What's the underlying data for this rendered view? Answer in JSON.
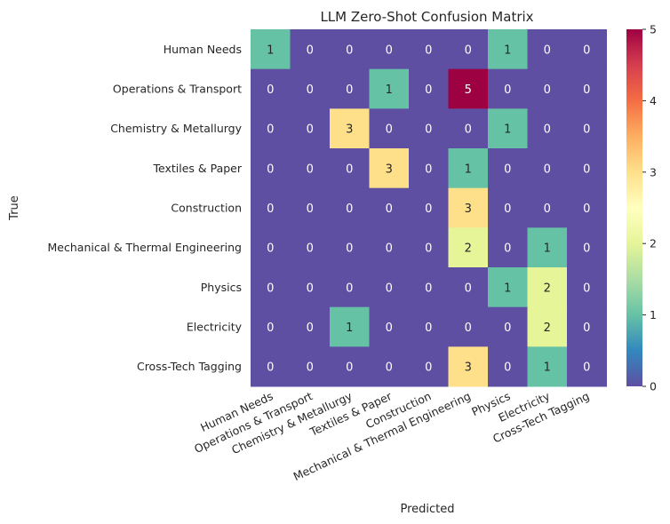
{
  "chart_data": {
    "type": "heatmap",
    "title": "LLM Zero-Shot Confusion Matrix",
    "xlabel": "Predicted",
    "ylabel": "True",
    "row_labels": [
      "Human Needs",
      "Operations & Transport",
      "Chemistry & Metallurgy",
      "Textiles & Paper",
      "Construction",
      "Mechanical & Thermal Engineering",
      "Physics",
      "Electricity",
      "Cross-Tech Tagging"
    ],
    "col_labels": [
      "Human Needs",
      "Operations & Transport",
      "Chemistry & Metallurgy",
      "Textiles & Paper",
      "Construction",
      "Mechanical & Thermal Engineering",
      "Physics",
      "Electricity",
      "Cross-Tech Tagging"
    ],
    "values": [
      [
        1,
        0,
        0,
        0,
        0,
        0,
        1,
        0,
        0
      ],
      [
        0,
        0,
        0,
        1,
        0,
        5,
        0,
        0,
        0
      ],
      [
        0,
        0,
        3,
        0,
        0,
        0,
        1,
        0,
        0
      ],
      [
        0,
        0,
        0,
        3,
        0,
        1,
        0,
        0,
        0
      ],
      [
        0,
        0,
        0,
        0,
        0,
        3,
        0,
        0,
        0
      ],
      [
        0,
        0,
        0,
        0,
        0,
        2,
        0,
        1,
        0
      ],
      [
        0,
        0,
        0,
        0,
        0,
        0,
        1,
        2,
        0
      ],
      [
        0,
        0,
        1,
        0,
        0,
        0,
        0,
        2,
        0
      ],
      [
        0,
        0,
        0,
        0,
        0,
        3,
        0,
        1,
        0
      ]
    ],
    "vmin": 0,
    "vmax": 5,
    "colormap": "Spectral_r",
    "colorbar_ticks": [
      "0",
      "1",
      "2",
      "3",
      "4",
      "5"
    ],
    "cell_annotations": true
  }
}
